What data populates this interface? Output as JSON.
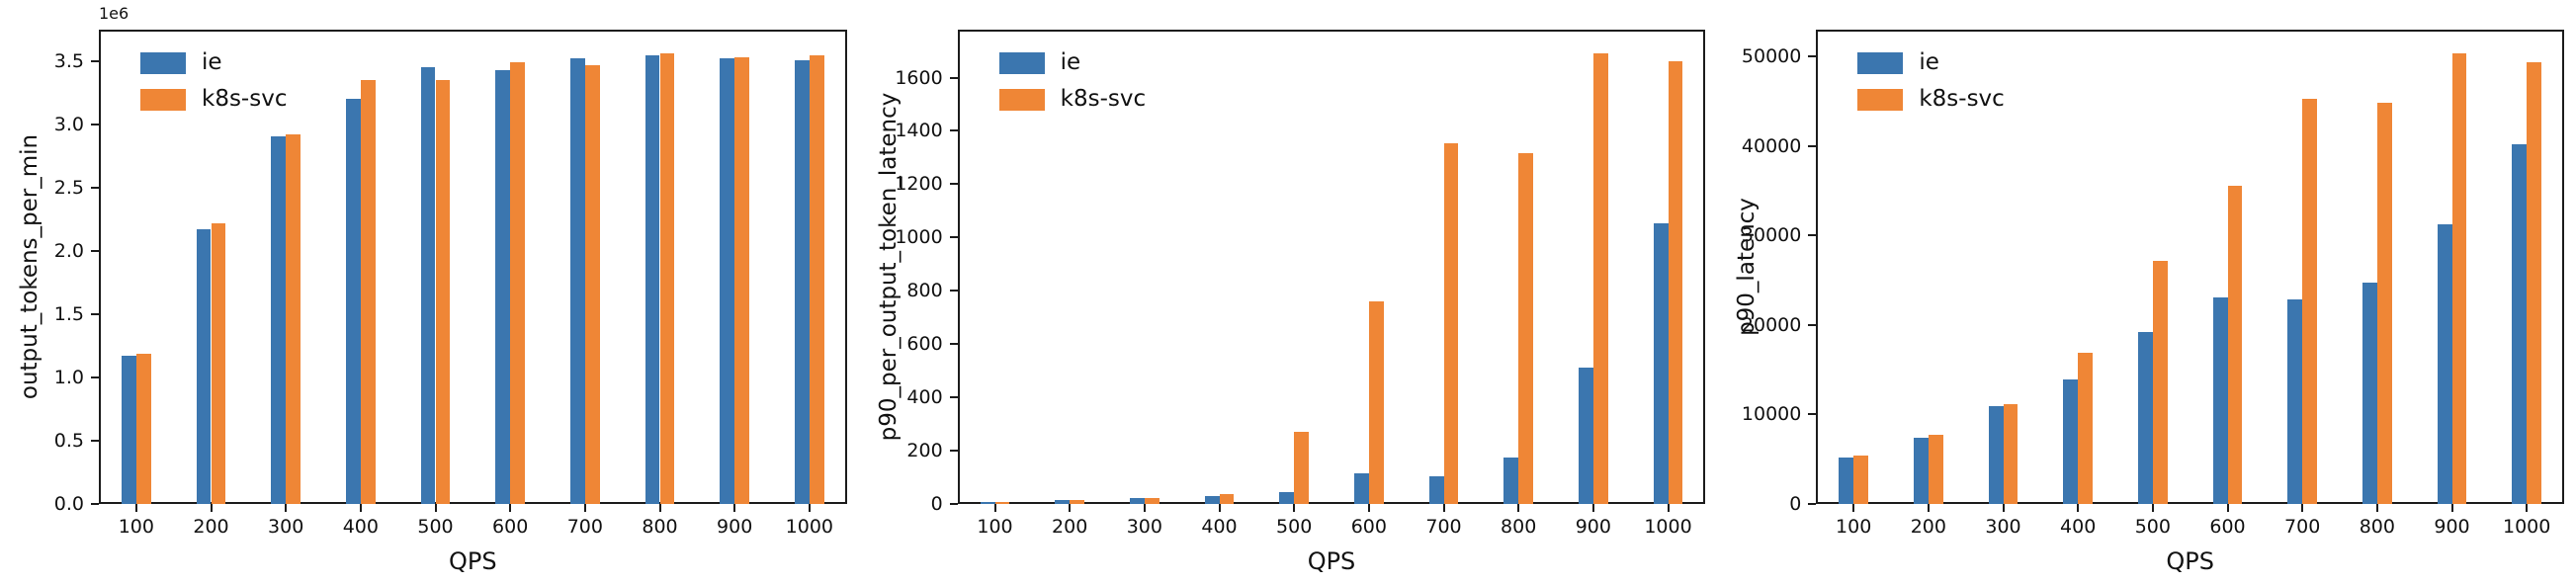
{
  "figure": {
    "background": "#ffffff",
    "text_color": "#111111",
    "spine_color": "#1c1c1c",
    "series_colors": {
      "ie": "#3b76af",
      "k8s-svc": "#ef8636"
    }
  },
  "chart_data": [
    {
      "type": "bar",
      "title": "",
      "xlabel": "QPS",
      "ylabel": "output_tokens_per_min",
      "offset_text": "1e6",
      "grid": false,
      "legend_position": "upper left",
      "categories": [
        "100",
        "200",
        "300",
        "400",
        "500",
        "600",
        "700",
        "800",
        "900",
        "1000"
      ],
      "series": [
        {
          "name": "ie",
          "color": "#3b76af",
          "values": [
            1170000,
            2170000,
            2910000,
            3200000,
            3450000,
            3430000,
            3520000,
            3550000,
            3520000,
            3510000
          ]
        },
        {
          "name": "k8s-svc",
          "color": "#ef8636",
          "values": [
            1190000,
            2220000,
            2920000,
            3350000,
            3350000,
            3490000,
            3470000,
            3560000,
            3530000,
            3550000
          ]
        }
      ],
      "ylim": [
        0,
        3750000
      ],
      "ytick_values": [
        0,
        500000,
        1000000,
        1500000,
        2000000,
        2500000,
        3000000,
        3500000
      ],
      "ytick_labels": [
        "0.0",
        "0.5",
        "1.0",
        "1.5",
        "2.0",
        "2.5",
        "3.0",
        "3.5"
      ]
    },
    {
      "type": "bar",
      "title": "",
      "xlabel": "QPS",
      "ylabel": "p90_per_output_token_latency",
      "offset_text": "",
      "grid": false,
      "legend_position": "upper left",
      "categories": [
        "100",
        "200",
        "300",
        "400",
        "500",
        "600",
        "700",
        "800",
        "900",
        "1000"
      ],
      "series": [
        {
          "name": "ie",
          "color": "#3b76af",
          "values": [
            8,
            15,
            22,
            30,
            46,
            115,
            105,
            175,
            510,
            1055
          ]
        },
        {
          "name": "k8s-svc",
          "color": "#ef8636",
          "values": [
            8,
            16,
            23,
            36,
            270,
            760,
            1355,
            1315,
            1690,
            1660
          ]
        }
      ],
      "ylim": [
        0,
        1780
      ],
      "ytick_values": [
        0,
        200,
        400,
        600,
        800,
        1000,
        1200,
        1400,
        1600
      ],
      "ytick_labels": [
        "0",
        "200",
        "400",
        "600",
        "800",
        "1000",
        "1200",
        "1400",
        "1600"
      ]
    },
    {
      "type": "bar",
      "title": "",
      "xlabel": "QPS",
      "ylabel": "p90_latency",
      "offset_text": "",
      "grid": false,
      "legend_position": "upper left",
      "categories": [
        "100",
        "200",
        "300",
        "400",
        "500",
        "600",
        "700",
        "800",
        "900",
        "1000"
      ],
      "series": [
        {
          "name": "ie",
          "color": "#3b76af",
          "values": [
            5200,
            7400,
            10900,
            13900,
            19200,
            23100,
            22900,
            24700,
            31300,
            40200
          ]
        },
        {
          "name": "k8s-svc",
          "color": "#ef8636",
          "values": [
            5400,
            7700,
            11100,
            16900,
            27200,
            35600,
            45300,
            44800,
            50300,
            49400
          ]
        }
      ],
      "ylim": [
        0,
        53000
      ],
      "ytick_values": [
        0,
        10000,
        20000,
        30000,
        40000,
        50000
      ],
      "ytick_labels": [
        "0",
        "10000",
        "20000",
        "30000",
        "40000",
        "50000"
      ]
    }
  ]
}
